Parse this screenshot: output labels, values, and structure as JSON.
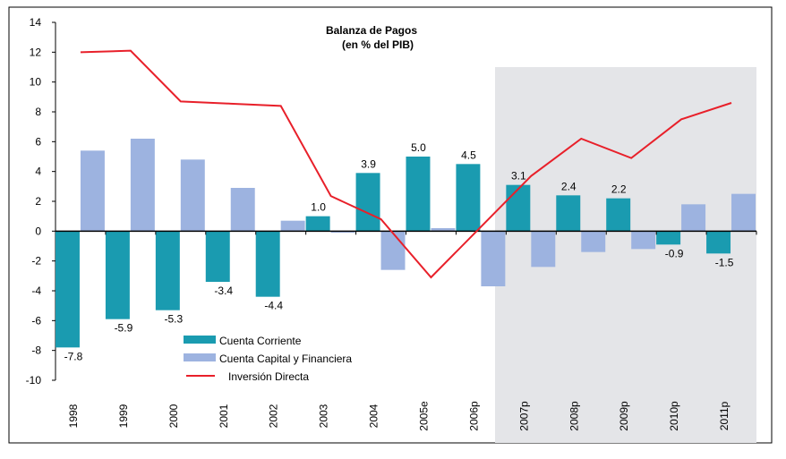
{
  "chart_data": {
    "type": "bar_line",
    "title": "Balanza de Pagos",
    "subtitle": "(en % del PIB)",
    "categories": [
      "1998",
      "1999",
      "2000",
      "2001",
      "2002",
      "2003",
      "2004",
      "2005e",
      "2006p",
      "2007p",
      "2008p",
      "2009p",
      "2010p",
      "2011p"
    ],
    "series": [
      {
        "name": "Cuenta Corriente",
        "type": "bar",
        "color": "#1a9bb0",
        "values": [
          -7.8,
          -5.9,
          -5.3,
          -3.4,
          -4.4,
          1.0,
          3.9,
          5.0,
          4.5,
          3.1,
          2.4,
          2.2,
          -0.9,
          -1.5
        ],
        "value_labels": [
          "-7.8",
          "-5.9",
          "-5.3",
          "-3.4",
          "-4.4",
          "1.0",
          "3.9",
          "5.0",
          "4.5",
          "3.1",
          "2.4",
          "2.2",
          "-0.9",
          "-1.5"
        ]
      },
      {
        "name": "Cuenta Capital y Financiera",
        "type": "bar",
        "color": "#9db3e0",
        "values": [
          5.4,
          6.2,
          4.8,
          2.9,
          0.7,
          -0.1,
          -2.6,
          0.2,
          -3.7,
          -2.4,
          -1.4,
          -1.2,
          1.8,
          2.5
        ]
      },
      {
        "name": "Inversión Directa",
        "type": "line",
        "color": "#e8202a",
        "values": [
          12.0,
          12.1,
          8.7,
          8.55,
          8.4,
          2.35,
          0.8,
          -3.1,
          0.3,
          3.7,
          6.2,
          4.9,
          7.5,
          8.6
        ]
      }
    ],
    "ylim": [
      -10,
      14
    ],
    "yticks": [
      -10,
      -8,
      -6,
      -4,
      -2,
      0,
      2,
      4,
      6,
      8,
      10,
      12,
      14
    ]
  }
}
